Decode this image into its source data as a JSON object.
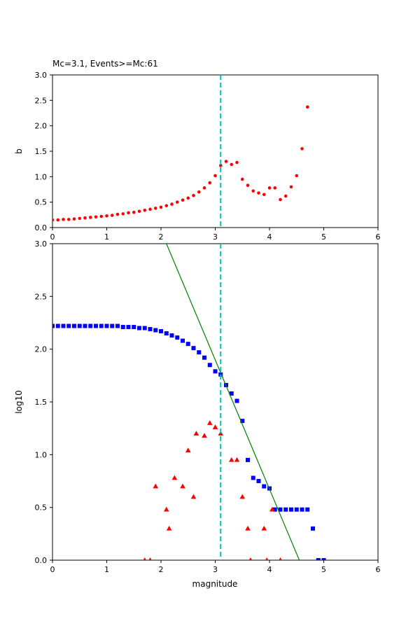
{
  "figure": {
    "background": "#ffffff",
    "frame_color": "#000000"
  },
  "chart_data": [
    {
      "type": "scatter",
      "title": "Mc=3.1, Events>=Mc:61",
      "xlabel": "",
      "ylabel": "b",
      "xlim": [
        0,
        6
      ],
      "ylim": [
        0,
        3
      ],
      "grid": false,
      "legend": null,
      "xticks": [
        0,
        1,
        2,
        3,
        4,
        5,
        6
      ],
      "xticklabels": [
        "0",
        "1",
        "2",
        "3",
        "4",
        "5",
        "6"
      ],
      "yticks": [
        0,
        0.5,
        1,
        1.5,
        2,
        2.5,
        3
      ],
      "yticklabels": [
        "0.0",
        "0.5",
        "1.0",
        "1.5",
        "2.0",
        "2.5",
        "3.0"
      ],
      "series": [
        {
          "name": "b-value-vs-magnitude",
          "kind": "scatter",
          "marker": "circle",
          "color": "#ff0000",
          "x": [
            0,
            0.1,
            0.2,
            0.3,
            0.4,
            0.5,
            0.6,
            0.7,
            0.8,
            0.9,
            1,
            1.1,
            1.2,
            1.3,
            1.4,
            1.5,
            1.6,
            1.7,
            1.8,
            1.9,
            2,
            2.1,
            2.2,
            2.3,
            2.4,
            2.5,
            2.6,
            2.7,
            2.8,
            2.9,
            3,
            3.1,
            3.2,
            3.3,
            3.4,
            3.5,
            3.6,
            3.7,
            3.8,
            3.9,
            4,
            4.1,
            4.2,
            4.3,
            4.4,
            4.5,
            4.6,
            4.7
          ],
          "y": [
            0.15,
            0.15,
            0.16,
            0.16,
            0.17,
            0.18,
            0.19,
            0.2,
            0.21,
            0.22,
            0.23,
            0.24,
            0.26,
            0.27,
            0.29,
            0.3,
            0.32,
            0.34,
            0.36,
            0.38,
            0.4,
            0.43,
            0.46,
            0.5,
            0.54,
            0.58,
            0.63,
            0.7,
            0.78,
            0.88,
            1.02,
            1.22,
            1.3,
            1.24,
            1.28,
            0.95,
            0.83,
            0.72,
            0.68,
            0.65,
            0.78,
            0.78,
            0.55,
            0.62,
            0.8,
            1.02,
            1.55,
            2.37
          ]
        },
        {
          "name": "mc-cutoff-line",
          "kind": "vline",
          "color": "#00bfbf",
          "dash": "7,4",
          "width": 2,
          "x": 3.1
        }
      ]
    },
    {
      "type": "scatter",
      "title": "",
      "xlabel": "magnitude",
      "ylabel": "log10",
      "xlim": [
        0,
        6
      ],
      "ylim": [
        0,
        3
      ],
      "grid": false,
      "legend": null,
      "xticks": [
        0,
        1,
        2,
        3,
        4,
        5,
        6
      ],
      "xticklabels": [
        "0",
        "1",
        "2",
        "3",
        "4",
        "5",
        "6"
      ],
      "yticks": [
        0,
        0.5,
        1,
        1.5,
        2,
        2.5,
        3
      ],
      "yticklabels": [
        "0.0",
        "0.5",
        "1.0",
        "1.5",
        "2.0",
        "2.5",
        "3.0"
      ],
      "series": [
        {
          "name": "cumulative-event-counts",
          "kind": "scatter",
          "marker": "square",
          "color": "#0000ff",
          "x": [
            0,
            0.1,
            0.2,
            0.3,
            0.4,
            0.5,
            0.6,
            0.7,
            0.8,
            0.9,
            1,
            1.1,
            1.2,
            1.3,
            1.4,
            1.5,
            1.6,
            1.7,
            1.8,
            1.9,
            2,
            2.1,
            2.2,
            2.3,
            2.4,
            2.5,
            2.6,
            2.7,
            2.8,
            2.9,
            3,
            3.1,
            3.2,
            3.3,
            3.4,
            3.5,
            3.6,
            3.7,
            3.8,
            3.9,
            4,
            4.1,
            4.2,
            4.3,
            4.4,
            4.5,
            4.6,
            4.7,
            4.8,
            4.9,
            5
          ],
          "y": [
            2.22,
            2.22,
            2.22,
            2.22,
            2.22,
            2.22,
            2.22,
            2.22,
            2.22,
            2.22,
            2.22,
            2.22,
            2.22,
            2.21,
            2.21,
            2.21,
            2.2,
            2.2,
            2.19,
            2.18,
            2.17,
            2.15,
            2.13,
            2.11,
            2.08,
            2.05,
            2.01,
            1.97,
            1.92,
            1.85,
            1.79,
            1.76,
            1.66,
            1.58,
            1.51,
            1.32,
            0.95,
            0.78,
            0.75,
            0.7,
            0.68,
            0.48,
            0.48,
            0.48,
            0.48,
            0.48,
            0.48,
            0.48,
            0.3,
            0,
            0
          ]
        },
        {
          "name": "per-bin-event-counts",
          "kind": "scatter",
          "marker": "triangle",
          "color": "#ff0000",
          "x": [
            1.7,
            1.8,
            1.9,
            2.1,
            2.15,
            2.25,
            2.4,
            2.5,
            2.6,
            2.65,
            2.8,
            2.9,
            3,
            3.1,
            3.3,
            3.4,
            3.5,
            3.6,
            3.65,
            3.9,
            3.95,
            4.05,
            4.2
          ],
          "y": [
            0,
            0,
            0.7,
            0.48,
            0.3,
            0.78,
            0.7,
            1.04,
            0.6,
            1.2,
            1.18,
            1.3,
            1.26,
            1.2,
            0.95,
            0.95,
            0.6,
            0.3,
            0,
            0.3,
            0,
            0.48,
            0
          ]
        },
        {
          "name": "gutenberg-richter-fit-line",
          "kind": "line",
          "color": "#008000",
          "width": 1.2,
          "x": [
            2.1,
            4.55
          ],
          "y": [
            3,
            0
          ]
        },
        {
          "name": "mc-cutoff-line",
          "kind": "vline",
          "color": "#00bfbf",
          "dash": "7,4",
          "width": 2,
          "x": 3.1
        }
      ]
    }
  ]
}
